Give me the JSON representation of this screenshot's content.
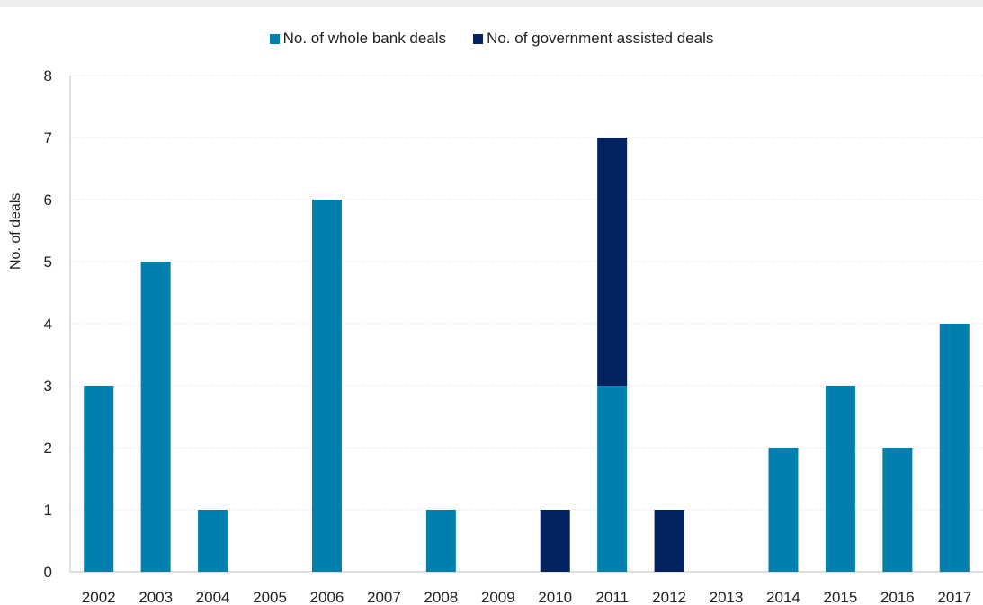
{
  "chart_data": {
    "type": "bar",
    "stacked": true,
    "title": "",
    "xlabel": "",
    "ylabel": "No. of deals",
    "ylim": [
      0,
      8
    ],
    "yticks": [
      0,
      1,
      2,
      3,
      4,
      5,
      6,
      7,
      8
    ],
    "grid": true,
    "legend_position": "top",
    "categories": [
      "2002",
      "2003",
      "2004",
      "2005",
      "2006",
      "2007",
      "2008",
      "2009",
      "2010",
      "2011",
      "2012",
      "2013",
      "2014",
      "2015",
      "2016",
      "2017"
    ],
    "series": [
      {
        "name": "No. of whole bank deals",
        "color": "#0180b0",
        "values": [
          3,
          5,
          1,
          0,
          6,
          0,
          1,
          0,
          0,
          3,
          0,
          0,
          2,
          3,
          2,
          4
        ]
      },
      {
        "name": "No. of government assisted deals",
        "color": "#022360",
        "values": [
          0,
          0,
          0,
          0,
          0,
          0,
          0,
          0,
          1,
          4,
          1,
          0,
          0,
          0,
          0,
          0
        ]
      }
    ]
  }
}
